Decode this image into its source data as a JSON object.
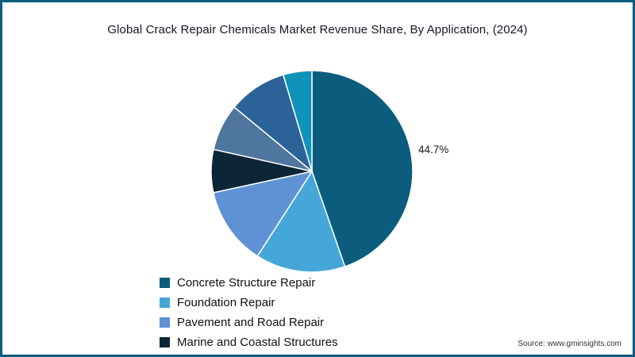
{
  "page": {
    "background_color": "#ffffff",
    "border_color": "#0b5c7d",
    "source": "Source: www.gminsights.com"
  },
  "chart_data": {
    "type": "pie",
    "title": "Global Crack Repair Chemicals Market Revenue Share, By Application,  (2024)",
    "start_angle": "top",
    "direction": "clockwise",
    "legend_position": "bottom-left",
    "segments": [
      {
        "label": "Concrete Structure Repair",
        "value": 44.7,
        "color": "#0b5c7d",
        "data_label": "44.7%"
      },
      {
        "label": "Foundation Repair",
        "value": 14.4,
        "color": "#45a6d9",
        "data_label": ""
      },
      {
        "label": "Pavement and Road Repair",
        "value": 12.5,
        "color": "#5f92d5",
        "data_label": ""
      },
      {
        "label": "Marine and Coastal Structures",
        "value": 6.9,
        "color": "#0c2537",
        "data_label": ""
      },
      {
        "label": "",
        "value": 7.5,
        "color": "#4f769e",
        "data_label": ""
      },
      {
        "label": "",
        "value": 9.4,
        "color": "#2b6399",
        "data_label": ""
      },
      {
        "label": "",
        "value": 4.6,
        "color": "#0f93ba",
        "data_label": ""
      }
    ],
    "legend": [
      "Concrete Structure Repair",
      "Foundation Repair",
      "Pavement and Road Repair",
      "Marine and Coastal Structures"
    ],
    "annotations": [
      {
        "text": "44.7%",
        "position": "right of largest slice"
      }
    ]
  }
}
